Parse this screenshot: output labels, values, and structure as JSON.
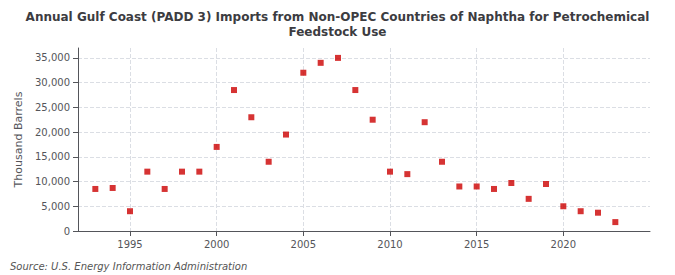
{
  "chart_data": {
    "type": "scatter",
    "title": "Annual Gulf Coast (PADD 3) Imports from Non-OPEC Countries of Naphtha for Petrochemical\nFeedstock Use",
    "ylabel": "Thousand Barrels",
    "annotations": [
      "Source: U.S. Energy Information Administration"
    ],
    "x": [
      1993,
      1994,
      1995,
      1996,
      1997,
      1998,
      1999,
      2000,
      2001,
      2002,
      2003,
      2004,
      2005,
      2006,
      2007,
      2008,
      2009,
      2010,
      2011,
      2012,
      2013,
      2014,
      2015,
      2016,
      2017,
      2018,
      2019,
      2020,
      2021,
      2022,
      2023
    ],
    "values": [
      8500,
      8700,
      4000,
      12000,
      8500,
      12000,
      12000,
      17000,
      28500,
      23000,
      14000,
      19500,
      32000,
      34000,
      35000,
      28500,
      22500,
      12000,
      11500,
      22000,
      14000,
      9000,
      9000,
      8500,
      9700,
      6500,
      9500,
      5000,
      4000,
      3700,
      1800
    ],
    "color": "#cc0000",
    "marker": "square",
    "xlim": [
      1992,
      2025
    ],
    "xticks": [
      1995,
      2000,
      2005,
      2010,
      2015,
      2020
    ],
    "ylim": [
      0,
      37000
    ],
    "yticks": [
      0,
      {
        "value": 5000,
        "label": "5,000"
      },
      {
        "value": 10000,
        "label": "10,000"
      },
      {
        "value": 15000,
        "label": "15,000"
      },
      {
        "value": 20000,
        "label": "20,000"
      },
      {
        "value": 25000,
        "label": "25,000"
      },
      {
        "value": 30000,
        "label": "30,000"
      },
      {
        "value": 35000,
        "label": "35,000"
      }
    ],
    "grid": true
  }
}
